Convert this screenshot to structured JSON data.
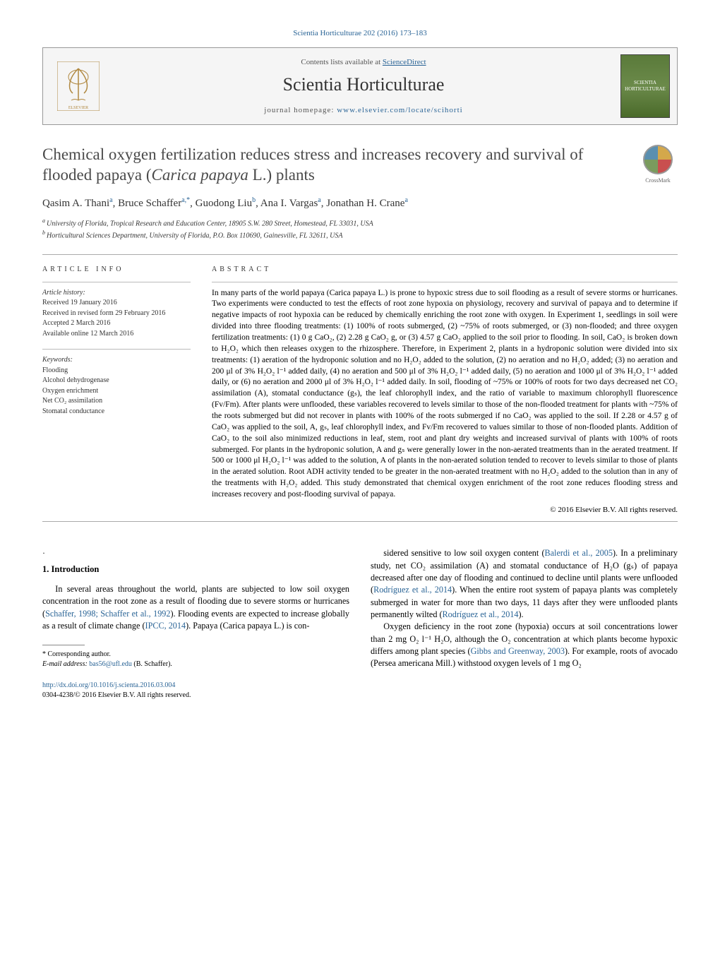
{
  "header": {
    "citation": "Scientia Horticulturae 202 (2016) 173–183",
    "contents_line_pre": "Contents lists available at ",
    "contents_line_link": "ScienceDirect",
    "journal_name": "Scientia Horticulturae",
    "homepage_pre": "journal homepage: ",
    "homepage_link": "www.elsevier.com/locate/scihorti",
    "cover_text_top": "SCIENTIA",
    "cover_text_bottom": "HORTICULTURAE"
  },
  "article": {
    "title_pre": "Chemical oxygen fertilization reduces stress and increases recovery and survival of flooded papaya (",
    "title_ital": "Carica papaya",
    "title_post": " L.) plants",
    "crossmark": "CrossMark",
    "authors_html": "Qasim A. Thani",
    "authors": [
      {
        "name": "Qasim A. Thani",
        "sup": "a"
      },
      {
        "name": "Bruce Schaffer",
        "sup": "a,*"
      },
      {
        "name": "Guodong Liu",
        "sup": "b"
      },
      {
        "name": "Ana I. Vargas",
        "sup": "a"
      },
      {
        "name": "Jonathan H. Crane",
        "sup": "a"
      }
    ],
    "affiliations": [
      {
        "sup": "a",
        "text": "University of Florida, Tropical Research and Education Center, 18905 S.W. 280 Street, Homestead, FL 33031, USA"
      },
      {
        "sup": "b",
        "text": "Horticultural Sciences Department, University of Florida, P.O. Box 110690, Gainesville, FL 32611, USA"
      }
    ]
  },
  "info": {
    "heading": "article info",
    "history_label": "Article history:",
    "history": [
      "Received 19 January 2016",
      "Received in revised form 29 February 2016",
      "Accepted 2 March 2016",
      "Available online 12 March 2016"
    ],
    "keywords_label": "Keywords:",
    "keywords": [
      "Flooding",
      "Alcohol dehydrogenase",
      "Oxygen enrichment",
      "Net CO₂ assimilation",
      "Stomatal conductance"
    ]
  },
  "abstract": {
    "heading": "abstract",
    "text": "In many parts of the world papaya (Carica papaya L.) is prone to hypoxic stress due to soil flooding as a result of severe storms or hurricanes. Two experiments were conducted to test the effects of root zone hypoxia on physiology, recovery and survival of papaya and to determine if negative impacts of root hypoxia can be reduced by chemically enriching the root zone with oxygen. In Experiment 1, seedlings in soil were divided into three flooding treatments: (1) 100% of roots submerged, (2) ~75% of roots submerged, or (3) non-flooded; and three oxygen fertilization treatments: (1) 0 g CaO₂, (2) 2.28 g CaO₂ g, or (3) 4.57 g CaO₂ applied to the soil prior to flooding. In soil, CaO₂ is broken down to H₂O₂ which then releases oxygen to the rhizosphere. Therefore, in Experiment 2, plants in a hydroponic solution were divided into six treatments: (1) aeration of the hydroponic solution and no H₂O₂ added to the solution, (2) no aeration and no H₂O₂ added; (3) no aeration and 200 μl of 3% H₂O₂ l⁻¹ added daily, (4) no aeration and 500 μl of 3% H₂O₂ l⁻¹ added daily, (5) no aeration and 1000 μl of 3% H₂O₂ l⁻¹ added daily, or (6) no aeration and 2000 μl of 3% H₂O₂ l⁻¹ added daily. In soil, flooding of ~75% or 100% of roots for two days decreased net CO₂ assimilation (A), stomatal conductance (gₛ), the leaf chlorophyll index, and the ratio of variable to maximum chlorophyll fluorescence (Fv/Fm). After plants were unflooded, these variables recovered to levels similar to those of the non-flooded treatment for plants with ~75% of the roots submerged but did not recover in plants with 100% of the roots submerged if no CaO₂ was applied to the soil. If 2.28 or 4.57 g of CaO₂ was applied to the soil, A, gₛ, leaf chlorophyll index, and Fv/Fm recovered to values similar to those of non-flooded plants. Addition of CaO₂ to the soil also minimized reductions in leaf, stem, root and plant dry weights and increased survival of plants with 100% of roots submerged. For plants in the hydroponic solution, A and gₛ were generally lower in the non-aerated treatments than in the aerated treatment. If 500 or 1000 μl H₂O₂ l⁻¹ was added to the solution, A of plants in the non-aerated solution tended to recover to levels similar to those of plants in the aerated solution. Root ADH activity tended to be greater in the non-aerated treatment with no H₂O₂ added to the solution than in any of the treatments with H₂O₂ added. This study demonstrated that chemical oxygen enrichment of the root zone reduces flooding stress and increases recovery and post-flooding survival of papaya.",
    "copyright": "© 2016 Elsevier B.V. All rights reserved."
  },
  "body": {
    "dot": "·",
    "intro_head": "1. Introduction",
    "left_p1_pre": "In several areas throughout the world, plants are subjected to low soil oxygen concentration in the root zone as a result of flooding due to severe storms or hurricanes (",
    "left_p1_ref1": "Schaffer, 1998; Schaffer et al., 1992",
    "left_p1_mid": "). Flooding events are expected to increase globally as a result of climate change (",
    "left_p1_ref2": "IPCC, 2014",
    "left_p1_post": "). Papaya (Carica papaya L.) is con-",
    "right_p1_pre": "sidered sensitive to low soil oxygen content (",
    "right_p1_ref1": "Balerdi et al., 2005",
    "right_p1_mid1": "). In a preliminary study, net CO₂ assimilation (A) and stomatal conductance of H₂O (gₛ) of papaya decreased after one day of flooding and continued to decline until plants were unflooded (",
    "right_p1_ref2": "Rodríguez et al., 2014",
    "right_p1_mid2": "). When the entire root system of papaya plants was completely submerged in water for more than two days, 11 days after they were unflooded plants permanently wilted (",
    "right_p1_ref3": "Rodríguez et al., 2014",
    "right_p1_post": ").",
    "right_p2_pre": "Oxygen deficiency in the root zone (hypoxia) occurs at soil concentrations lower than 2 mg O₂ l⁻¹ H₂O, although the O₂ concentration at which plants become hypoxic differs among plant species (",
    "right_p2_ref1": "Gibbs and Greenway, 2003",
    "right_p2_post": "). For example, roots of avocado (Persea americana Mill.) withstood oxygen levels of 1 mg O₂"
  },
  "footnote": {
    "corr": "* Corresponding author.",
    "email_label": "E-mail address: ",
    "email": "bas56@ufl.edu",
    "email_post": " (B. Schaffer)."
  },
  "footer": {
    "doi": "http://dx.doi.org/10.1016/j.scienta.2016.03.004",
    "issn": "0304-4238/© 2016 Elsevier B.V. All rights reserved."
  },
  "colors": {
    "link": "#2a6496",
    "text": "#000000",
    "heading_gray": "#4a4a4a"
  }
}
